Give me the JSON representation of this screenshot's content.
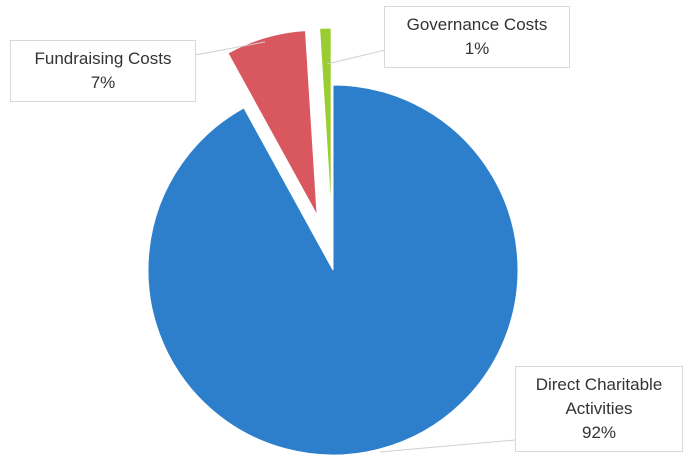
{
  "chart_data": {
    "type": "pie",
    "categories": [
      "Direct Charitable Activities",
      "Fundraising Costs",
      "Governance Costs"
    ],
    "values": [
      92,
      7,
      1
    ],
    "value_labels": [
      "92%",
      "7%",
      "1%"
    ],
    "colors": [
      "#2e7fcb",
      "#d9575f",
      "#9acd32"
    ]
  }
}
